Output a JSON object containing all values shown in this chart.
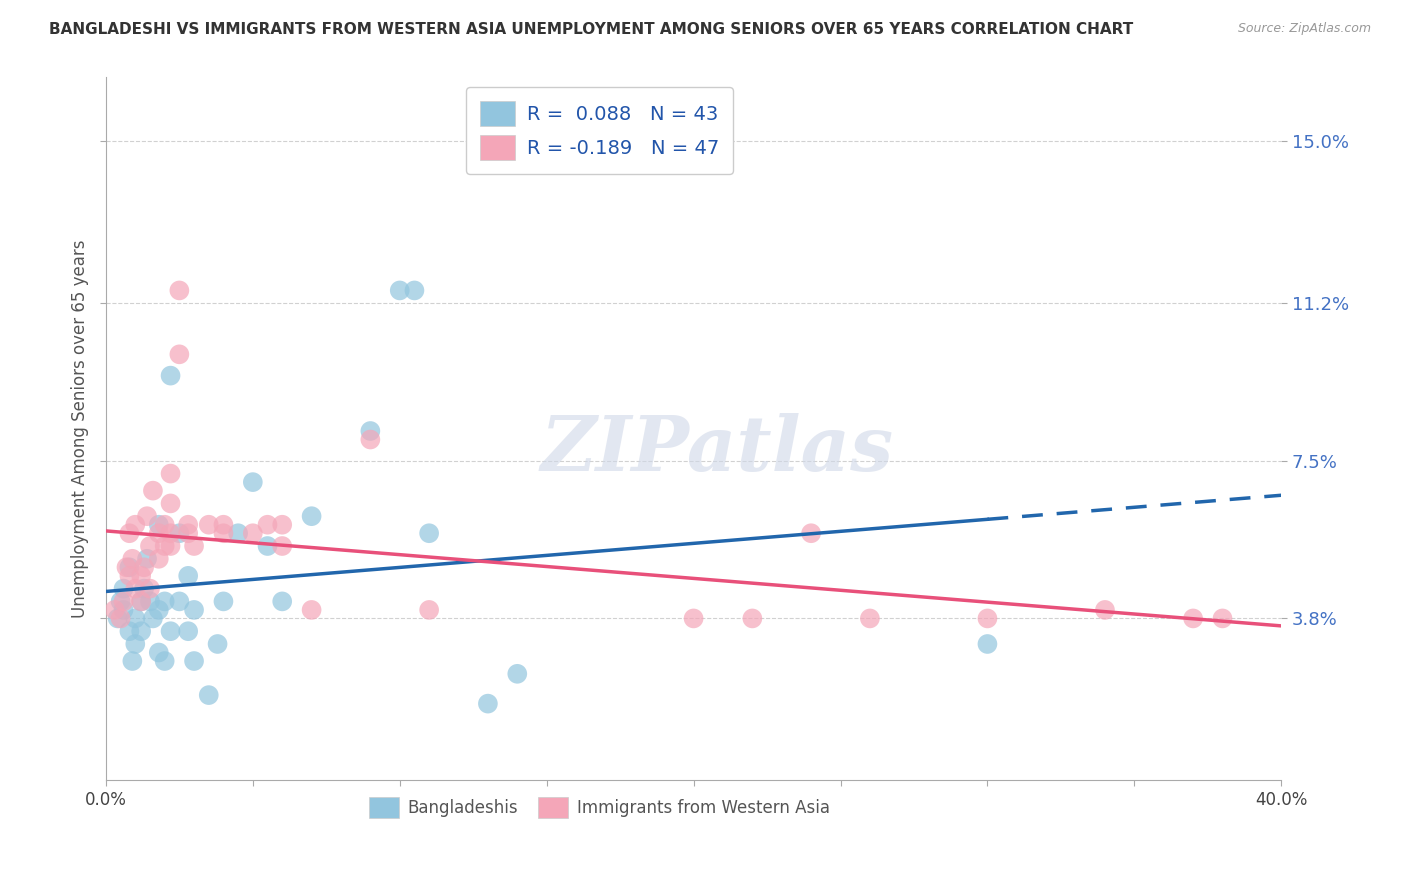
{
  "title": "BANGLADESHI VS IMMIGRANTS FROM WESTERN ASIA UNEMPLOYMENT AMONG SENIORS OVER 65 YEARS CORRELATION CHART",
  "source": "Source: ZipAtlas.com",
  "ylabel": "Unemployment Among Seniors over 65 years",
  "xlim": [
    0.0,
    0.4
  ],
  "ylim": [
    0.0,
    0.165
  ],
  "yticks": [
    0.038,
    0.075,
    0.112,
    0.15
  ],
  "ytick_labels": [
    "3.8%",
    "7.5%",
    "11.2%",
    "15.0%"
  ],
  "xticks": [
    0.0,
    0.05,
    0.1,
    0.15,
    0.2,
    0.25,
    0.3,
    0.35,
    0.4
  ],
  "xtick_labels": [
    "0.0%",
    "",
    "",
    "",
    "",
    "",
    "",
    "",
    "40.0%"
  ],
  "legend1_label": "R =  0.088   N = 43",
  "legend2_label": "R = -0.189   N = 47",
  "legend_bottom": "Bangladeshis",
  "legend_bottom2": "Immigrants from Western Asia",
  "blue_color": "#92c5de",
  "pink_color": "#f4a6b8",
  "line_blue": "#2166ac",
  "line_pink": "#e8507a",
  "watermark": "ZIPatlas",
  "blue_scatter": [
    [
      0.004,
      0.038
    ],
    [
      0.005,
      0.042
    ],
    [
      0.006,
      0.045
    ],
    [
      0.006,
      0.04
    ],
    [
      0.008,
      0.05
    ],
    [
      0.008,
      0.035
    ],
    [
      0.009,
      0.028
    ],
    [
      0.01,
      0.038
    ],
    [
      0.01,
      0.032
    ],
    [
      0.012,
      0.035
    ],
    [
      0.012,
      0.042
    ],
    [
      0.013,
      0.045
    ],
    [
      0.014,
      0.052
    ],
    [
      0.015,
      0.042
    ],
    [
      0.016,
      0.038
    ],
    [
      0.018,
      0.04
    ],
    [
      0.018,
      0.06
    ],
    [
      0.018,
      0.03
    ],
    [
      0.02,
      0.028
    ],
    [
      0.02,
      0.042
    ],
    [
      0.022,
      0.035
    ],
    [
      0.022,
      0.095
    ],
    [
      0.025,
      0.058
    ],
    [
      0.025,
      0.042
    ],
    [
      0.028,
      0.048
    ],
    [
      0.028,
      0.035
    ],
    [
      0.03,
      0.04
    ],
    [
      0.03,
      0.028
    ],
    [
      0.035,
      0.02
    ],
    [
      0.038,
      0.032
    ],
    [
      0.04,
      0.042
    ],
    [
      0.045,
      0.058
    ],
    [
      0.05,
      0.07
    ],
    [
      0.055,
      0.055
    ],
    [
      0.06,
      0.042
    ],
    [
      0.07,
      0.062
    ],
    [
      0.09,
      0.082
    ],
    [
      0.1,
      0.115
    ],
    [
      0.105,
      0.115
    ],
    [
      0.11,
      0.058
    ],
    [
      0.13,
      0.018
    ],
    [
      0.14,
      0.025
    ],
    [
      0.3,
      0.032
    ]
  ],
  "pink_scatter": [
    [
      0.003,
      0.04
    ],
    [
      0.005,
      0.038
    ],
    [
      0.006,
      0.042
    ],
    [
      0.007,
      0.05
    ],
    [
      0.008,
      0.048
    ],
    [
      0.008,
      0.058
    ],
    [
      0.009,
      0.052
    ],
    [
      0.01,
      0.045
    ],
    [
      0.01,
      0.06
    ],
    [
      0.012,
      0.042
    ],
    [
      0.012,
      0.048
    ],
    [
      0.013,
      0.05
    ],
    [
      0.014,
      0.062
    ],
    [
      0.015,
      0.055
    ],
    [
      0.015,
      0.045
    ],
    [
      0.016,
      0.068
    ],
    [
      0.018,
      0.058
    ],
    [
      0.018,
      0.052
    ],
    [
      0.02,
      0.06
    ],
    [
      0.02,
      0.055
    ],
    [
      0.022,
      0.065
    ],
    [
      0.022,
      0.055
    ],
    [
      0.022,
      0.058
    ],
    [
      0.022,
      0.072
    ],
    [
      0.025,
      0.115
    ],
    [
      0.025,
      0.1
    ],
    [
      0.028,
      0.06
    ],
    [
      0.028,
      0.058
    ],
    [
      0.03,
      0.055
    ],
    [
      0.035,
      0.06
    ],
    [
      0.04,
      0.058
    ],
    [
      0.04,
      0.06
    ],
    [
      0.05,
      0.058
    ],
    [
      0.055,
      0.06
    ],
    [
      0.06,
      0.06
    ],
    [
      0.06,
      0.055
    ],
    [
      0.07,
      0.04
    ],
    [
      0.09,
      0.08
    ],
    [
      0.11,
      0.04
    ],
    [
      0.2,
      0.038
    ],
    [
      0.22,
      0.038
    ],
    [
      0.24,
      0.058
    ],
    [
      0.26,
      0.038
    ],
    [
      0.3,
      0.038
    ],
    [
      0.34,
      0.04
    ],
    [
      0.37,
      0.038
    ],
    [
      0.38,
      0.038
    ]
  ]
}
